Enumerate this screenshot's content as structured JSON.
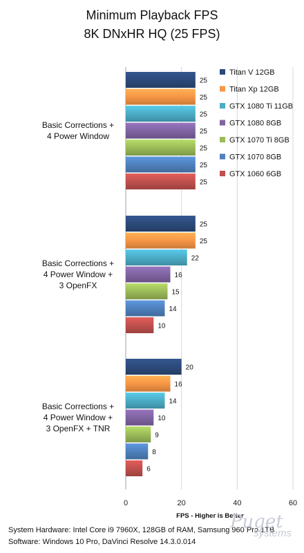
{
  "chart_data": {
    "type": "bar",
    "orientation": "horizontal",
    "title": "Minimum Playback FPS",
    "subtitle": "8K DNxHR HQ (25 FPS)",
    "xlabel": "FPS - Higher is Better",
    "xlim": [
      0,
      60
    ],
    "xticks": [
      0,
      20,
      40,
      60
    ],
    "legend_position": "top-right",
    "categories": [
      "Basic Corrections +\n4 Power Window",
      "Basic Corrections +\n4 Power Window +\n3 OpenFX",
      "Basic Corrections +\n4 Power Window +\n3 OpenFX + TNR"
    ],
    "series": [
      {
        "name": "Titan V 12GB",
        "color": "#2c4a7a",
        "values": [
          25,
          25,
          20
        ]
      },
      {
        "name": "Titan Xp 12GB",
        "color": "#f79646",
        "values": [
          25,
          25,
          16
        ]
      },
      {
        "name": "GTX 1080 Ti 11GB",
        "color": "#4bacc6",
        "values": [
          25,
          22,
          14
        ]
      },
      {
        "name": "GTX 1080 8GB",
        "color": "#8064a2",
        "values": [
          25,
          16,
          10
        ]
      },
      {
        "name": "GTX 1070 Ti 8GB",
        "color": "#9bbb59",
        "values": [
          25,
          15,
          9
        ]
      },
      {
        "name": "GTX 1070 8GB",
        "color": "#4f81bd",
        "values": [
          25,
          14,
          8
        ]
      },
      {
        "name": "GTX 1060 6GB",
        "color": "#c0504d",
        "values": [
          25,
          10,
          6
        ]
      }
    ]
  },
  "footer": {
    "hardware": "System Hardware: Intel Core i9 7960X,  128GB of RAM, Samsung 960 Pro 1TB",
    "software": "Software: Windows 10 Pro, DaVinci Resolve 14.3.0.014"
  },
  "brand": {
    "name": "Puget",
    "sub": "systems"
  }
}
